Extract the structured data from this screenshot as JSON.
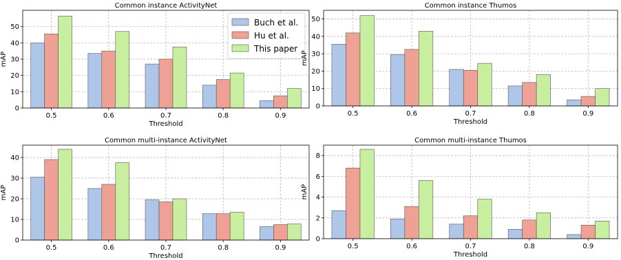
{
  "chart_data": [
    {
      "type": "bar",
      "title": "Common instance ActivityNet",
      "xlabel": "Threshold",
      "ylabel": "mAP",
      "categories": [
        "0.5",
        "0.6",
        "0.7",
        "0.8",
        "0.9"
      ],
      "ylim": [
        0,
        60
      ],
      "yticks": [
        "0",
        "10",
        "20",
        "30",
        "40",
        "50"
      ],
      "grid": true,
      "legend": "top-right",
      "series": [
        {
          "name": "Buch et al.",
          "values": [
            40,
            33.5,
            27,
            14,
            4.5
          ]
        },
        {
          "name": "Hu et al.",
          "values": [
            45.5,
            35,
            30,
            17.5,
            7.5
          ]
        },
        {
          "name": "This paper",
          "values": [
            56.5,
            47,
            37.5,
            21.5,
            12
          ]
        }
      ]
    },
    {
      "type": "bar",
      "title": "Common instance Thumos",
      "xlabel": "Threshold",
      "ylabel": "mAP",
      "categories": [
        "0.5",
        "0.6",
        "0.7",
        "0.8",
        "0.9"
      ],
      "ylim": [
        0,
        55
      ],
      "yticks": [
        "0",
        "10",
        "20",
        "30",
        "40",
        "50"
      ],
      "grid": true,
      "series": [
        {
          "name": "Buch et al.",
          "values": [
            35.5,
            29.5,
            21,
            11.5,
            3.5
          ]
        },
        {
          "name": "Hu et al.",
          "values": [
            42,
            32.5,
            20.5,
            13.5,
            5.5
          ]
        },
        {
          "name": "This paper",
          "values": [
            52,
            43,
            24.5,
            18,
            10
          ]
        }
      ]
    },
    {
      "type": "bar",
      "title": "Common multi-instance ActivityNet",
      "xlabel": "Threshold",
      "ylabel": "mAP",
      "categories": [
        "0.5",
        "0.6",
        "0.7",
        "0.8",
        "0.9"
      ],
      "ylim": [
        0,
        46
      ],
      "yticks": [
        "0",
        "10",
        "20",
        "30",
        "40"
      ],
      "grid": true,
      "series": [
        {
          "name": "Buch et al.",
          "values": [
            30.5,
            25,
            19.5,
            12.8,
            6.5
          ]
        },
        {
          "name": "Hu et al.",
          "values": [
            39,
            27,
            18.5,
            12.8,
            7.5
          ]
        },
        {
          "name": "This paper",
          "values": [
            44,
            37.5,
            20,
            13.5,
            7.8
          ]
        }
      ]
    },
    {
      "type": "bar",
      "title": "Common multi-instance Thumos",
      "xlabel": "Threshold",
      "ylabel": "mAP",
      "categories": [
        "0.5",
        "0.6",
        "0.7",
        "0.8",
        "0.9"
      ],
      "ylim": [
        0,
        9
      ],
      "yticks": [
        "0",
        "2",
        "4",
        "6",
        "8"
      ],
      "grid": true,
      "series": [
        {
          "name": "Buch et al.",
          "values": [
            2.7,
            1.9,
            1.4,
            0.9,
            0.4
          ]
        },
        {
          "name": "Hu et al.",
          "values": [
            6.8,
            3.1,
            2.2,
            1.8,
            1.3
          ]
        },
        {
          "name": "This paper",
          "values": [
            8.6,
            5.6,
            3.8,
            2.5,
            1.7
          ]
        }
      ]
    }
  ],
  "colors": {
    "series": [
      "#aec7e8",
      "#f0a196",
      "#c8eea0"
    ],
    "grid": "#b0b0b0",
    "axis": "#000000"
  }
}
